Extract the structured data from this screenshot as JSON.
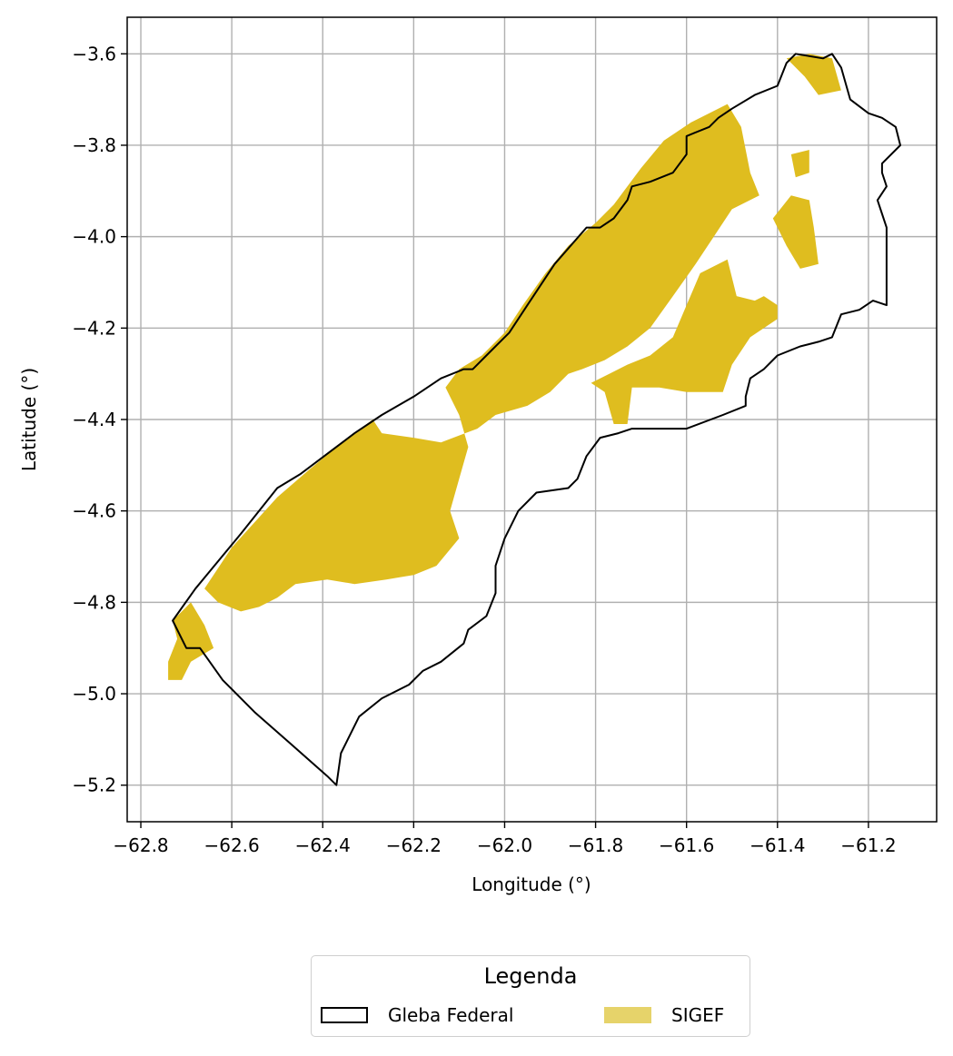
{
  "chart_data": {
    "type": "map",
    "xlabel": "Longitude (°)",
    "ylabel": "Latitude (°)",
    "xlim": [
      -62.83,
      -61.05
    ],
    "ylim": [
      -5.28,
      -3.52
    ],
    "grid": true,
    "x_ticks": [
      -62.8,
      -62.6,
      -62.4,
      -62.2,
      -62.0,
      -61.8,
      -61.6,
      -61.4,
      -61.2
    ],
    "y_ticks": [
      -3.6,
      -3.8,
      -4.0,
      -4.2,
      -4.4,
      -4.6,
      -4.8,
      -5.0,
      -5.2
    ],
    "x_tick_labels": [
      "−62.8",
      "−62.6",
      "−62.4",
      "−62.2",
      "−62.0",
      "−61.8",
      "−61.6",
      "−61.4",
      "−61.2"
    ],
    "y_tick_labels": [
      "−3.6",
      "−3.8",
      "−4.0",
      "−4.2",
      "−4.4",
      "−4.6",
      "−4.8",
      "−5.0",
      "−5.2"
    ],
    "layers": [
      {
        "name": "Gleba Federal",
        "style": "outline",
        "color": "#000000",
        "coordinates": [
          [
            -62.73,
            -4.84
          ],
          [
            -62.68,
            -4.77
          ],
          [
            -62.58,
            -4.65
          ],
          [
            -62.5,
            -4.55
          ],
          [
            -62.45,
            -4.52
          ],
          [
            -62.37,
            -4.46
          ],
          [
            -62.33,
            -4.43
          ],
          [
            -62.27,
            -4.39
          ],
          [
            -62.2,
            -4.35
          ],
          [
            -62.14,
            -4.31
          ],
          [
            -62.09,
            -4.29
          ],
          [
            -62.07,
            -4.29
          ],
          [
            -62.03,
            -4.25
          ],
          [
            -61.99,
            -4.21
          ],
          [
            -61.95,
            -4.15
          ],
          [
            -61.89,
            -4.06
          ],
          [
            -61.82,
            -3.98
          ],
          [
            -61.79,
            -3.98
          ],
          [
            -61.76,
            -3.96
          ],
          [
            -61.73,
            -3.92
          ],
          [
            -61.72,
            -3.89
          ],
          [
            -61.68,
            -3.88
          ],
          [
            -61.63,
            -3.86
          ],
          [
            -61.6,
            -3.82
          ],
          [
            -61.6,
            -3.78
          ],
          [
            -61.55,
            -3.76
          ],
          [
            -61.53,
            -3.74
          ],
          [
            -61.5,
            -3.72
          ],
          [
            -61.45,
            -3.69
          ],
          [
            -61.4,
            -3.67
          ],
          [
            -61.38,
            -3.62
          ],
          [
            -61.36,
            -3.6
          ],
          [
            -61.3,
            -3.61
          ],
          [
            -61.28,
            -3.6
          ],
          [
            -61.26,
            -3.63
          ],
          [
            -61.24,
            -3.7
          ],
          [
            -61.2,
            -3.73
          ],
          [
            -61.17,
            -3.74
          ],
          [
            -61.14,
            -3.76
          ],
          [
            -61.13,
            -3.8
          ],
          [
            -61.17,
            -3.84
          ],
          [
            -61.17,
            -3.86
          ],
          [
            -61.16,
            -3.89
          ],
          [
            -61.18,
            -3.92
          ],
          [
            -61.17,
            -3.95
          ],
          [
            -61.16,
            -3.98
          ],
          [
            -61.16,
            -4.15
          ],
          [
            -61.19,
            -4.14
          ],
          [
            -61.22,
            -4.16
          ],
          [
            -61.26,
            -4.17
          ],
          [
            -61.28,
            -4.22
          ],
          [
            -61.31,
            -4.23
          ],
          [
            -61.35,
            -4.24
          ],
          [
            -61.4,
            -4.26
          ],
          [
            -61.43,
            -4.29
          ],
          [
            -61.46,
            -4.31
          ],
          [
            -61.47,
            -4.35
          ],
          [
            -61.47,
            -4.37
          ],
          [
            -61.52,
            -4.39
          ],
          [
            -61.6,
            -4.42
          ],
          [
            -61.72,
            -4.42
          ],
          [
            -61.75,
            -4.43
          ],
          [
            -61.79,
            -4.44
          ],
          [
            -61.82,
            -4.48
          ],
          [
            -61.84,
            -4.53
          ],
          [
            -61.86,
            -4.55
          ],
          [
            -61.93,
            -4.56
          ],
          [
            -61.97,
            -4.6
          ],
          [
            -62.0,
            -4.66
          ],
          [
            -62.02,
            -4.72
          ],
          [
            -62.02,
            -4.78
          ],
          [
            -62.04,
            -4.83
          ],
          [
            -62.08,
            -4.86
          ],
          [
            -62.09,
            -4.89
          ],
          [
            -62.14,
            -4.93
          ],
          [
            -62.18,
            -4.95
          ],
          [
            -62.21,
            -4.98
          ],
          [
            -62.27,
            -5.01
          ],
          [
            -62.32,
            -5.05
          ],
          [
            -62.36,
            -5.13
          ],
          [
            -62.37,
            -5.2
          ],
          [
            -62.39,
            -5.18
          ],
          [
            -62.47,
            -5.11
          ],
          [
            -62.55,
            -5.04
          ],
          [
            -62.62,
            -4.97
          ],
          [
            -62.67,
            -4.9
          ],
          [
            -62.7,
            -4.9
          ],
          [
            -62.73,
            -4.84
          ]
        ]
      },
      {
        "name": "SIGEF",
        "style": "fill",
        "color": "#dfbd1f",
        "legend_color": "#e6d36a",
        "parts": [
          {
            "coordinates": [
              [
                -62.66,
                -4.77
              ],
              [
                -62.6,
                -4.68
              ],
              [
                -62.5,
                -4.57
              ],
              [
                -62.43,
                -4.51
              ],
              [
                -62.37,
                -4.46
              ],
              [
                -62.29,
                -4.4
              ],
              [
                -62.27,
                -4.43
              ],
              [
                -62.2,
                -4.44
              ],
              [
                -62.14,
                -4.45
              ],
              [
                -62.06,
                -4.42
              ],
              [
                -62.02,
                -4.39
              ],
              [
                -61.95,
                -4.37
              ],
              [
                -61.9,
                -4.34
              ],
              [
                -61.86,
                -4.3
              ],
              [
                -61.83,
                -4.29
              ],
              [
                -61.78,
                -4.27
              ],
              [
                -61.73,
                -4.24
              ],
              [
                -61.68,
                -4.2
              ],
              [
                -61.63,
                -4.13
              ],
              [
                -61.58,
                -4.06
              ],
              [
                -61.54,
                -4.0
              ],
              [
                -61.5,
                -3.94
              ],
              [
                -61.44,
                -3.91
              ],
              [
                -61.46,
                -3.86
              ],
              [
                -61.48,
                -3.76
              ],
              [
                -61.51,
                -3.71
              ],
              [
                -61.59,
                -3.75
              ],
              [
                -61.65,
                -3.79
              ],
              [
                -61.7,
                -3.85
              ],
              [
                -61.73,
                -3.89
              ],
              [
                -61.76,
                -3.93
              ],
              [
                -61.8,
                -3.97
              ],
              [
                -61.86,
                -4.02
              ],
              [
                -61.91,
                -4.08
              ],
              [
                -61.96,
                -4.15
              ],
              [
                -62.0,
                -4.21
              ],
              [
                -62.05,
                -4.26
              ],
              [
                -62.1,
                -4.29
              ],
              [
                -62.13,
                -4.33
              ],
              [
                -62.1,
                -4.39
              ],
              [
                -62.08,
                -4.46
              ],
              [
                -62.1,
                -4.53
              ],
              [
                -62.12,
                -4.6
              ],
              [
                -62.1,
                -4.66
              ],
              [
                -62.15,
                -4.72
              ],
              [
                -62.2,
                -4.74
              ],
              [
                -62.26,
                -4.75
              ],
              [
                -62.33,
                -4.76
              ],
              [
                -62.39,
                -4.75
              ],
              [
                -62.46,
                -4.76
              ],
              [
                -62.5,
                -4.79
              ],
              [
                -62.54,
                -4.81
              ],
              [
                -62.58,
                -4.82
              ],
              [
                -62.63,
                -4.8
              ]
            ]
          },
          {
            "coordinates": [
              [
                -62.73,
                -4.84
              ],
              [
                -62.69,
                -4.8
              ],
              [
                -62.66,
                -4.85
              ],
              [
                -62.64,
                -4.9
              ],
              [
                -62.69,
                -4.93
              ],
              [
                -62.71,
                -4.97
              ],
              [
                -62.74,
                -4.97
              ],
              [
                -62.74,
                -4.93
              ],
              [
                -62.72,
                -4.88
              ]
            ]
          },
          {
            "coordinates": [
              [
                -61.77,
                -4.3
              ],
              [
                -61.73,
                -4.28
              ],
              [
                -61.68,
                -4.26
              ],
              [
                -61.63,
                -4.22
              ],
              [
                -61.6,
                -4.15
              ],
              [
                -61.57,
                -4.08
              ],
              [
                -61.51,
                -4.05
              ],
              [
                -61.49,
                -4.13
              ],
              [
                -61.45,
                -4.14
              ],
              [
                -61.43,
                -4.13
              ],
              [
                -61.4,
                -4.15
              ],
              [
                -61.4,
                -4.18
              ],
              [
                -61.46,
                -4.22
              ],
              [
                -61.5,
                -4.28
              ],
              [
                -61.52,
                -4.34
              ],
              [
                -61.6,
                -4.34
              ],
              [
                -61.66,
                -4.33
              ],
              [
                -61.72,
                -4.33
              ],
              [
                -61.73,
                -4.41
              ],
              [
                -61.76,
                -4.41
              ],
              [
                -61.78,
                -4.34
              ],
              [
                -61.81,
                -4.32
              ]
            ]
          },
          {
            "coordinates": [
              [
                -61.38,
                -3.61
              ],
              [
                -61.33,
                -3.6
              ],
              [
                -61.28,
                -3.61
              ],
              [
                -61.26,
                -3.68
              ],
              [
                -61.31,
                -3.69
              ],
              [
                -61.34,
                -3.65
              ]
            ]
          },
          {
            "coordinates": [
              [
                -61.41,
                -3.96
              ],
              [
                -61.37,
                -3.91
              ],
              [
                -61.33,
                -3.92
              ],
              [
                -61.32,
                -3.98
              ],
              [
                -61.31,
                -4.06
              ],
              [
                -61.35,
                -4.07
              ],
              [
                -61.38,
                -4.02
              ]
            ]
          },
          {
            "coordinates": [
              [
                -61.37,
                -3.82
              ],
              [
                -61.33,
                -3.81
              ],
              [
                -61.33,
                -3.86
              ],
              [
                -61.36,
                -3.87
              ]
            ]
          }
        ]
      }
    ],
    "legend": {
      "title": "Legenda",
      "placement": "bottom-center",
      "entries": [
        "Gleba Federal",
        "SIGEF"
      ]
    }
  }
}
